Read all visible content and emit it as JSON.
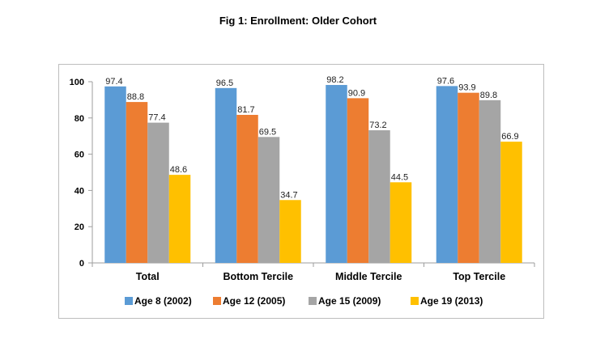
{
  "figure": {
    "title": "Fig 1: Enrollment: Older Cohort"
  },
  "colors": {
    "series": [
      "#5b9bd5",
      "#ed7d31",
      "#a5a5a5",
      "#ffc000"
    ],
    "axis": "#9e9e9e",
    "frame": "#bdbdbd"
  },
  "chart_data": {
    "type": "bar",
    "title": "Fig 1: Enrollment: Older Cohort",
    "xlabel": "",
    "ylabel": "",
    "ylim": [
      0,
      100
    ],
    "yticks": [
      0,
      20,
      40,
      60,
      80,
      100
    ],
    "grid": false,
    "legend_position": "bottom",
    "categories": [
      "Total",
      "Bottom Tercile",
      "Middle Tercile",
      "Top Tercile"
    ],
    "series": [
      {
        "name": "Age 8 (2002)",
        "values": [
          97.4,
          96.5,
          98.2,
          97.6
        ]
      },
      {
        "name": "Age 12 (2005)",
        "values": [
          88.8,
          81.7,
          90.9,
          93.9
        ]
      },
      {
        "name": "Age 15 (2009)",
        "values": [
          77.4,
          69.5,
          73.2,
          89.8
        ]
      },
      {
        "name": "Age 19 (2013)",
        "values": [
          48.6,
          34.7,
          44.5,
          66.9
        ]
      }
    ]
  }
}
